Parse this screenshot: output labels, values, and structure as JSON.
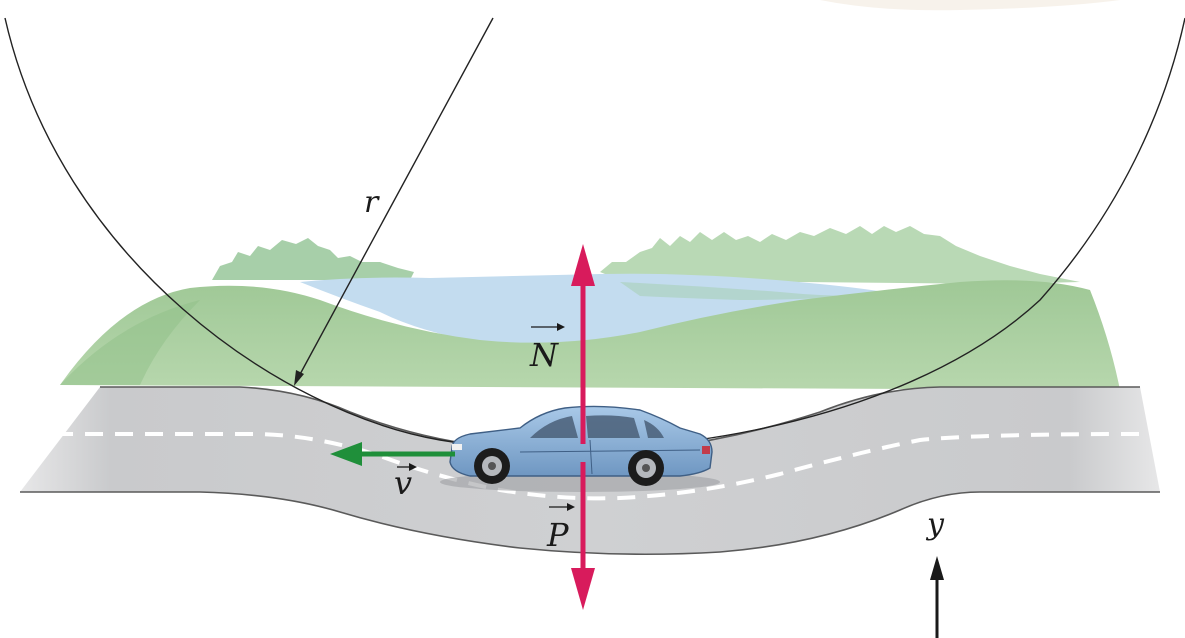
{
  "labels": {
    "radius": "r",
    "normal_force": "N",
    "weight": "P",
    "velocity": "v",
    "y_axis": "y"
  },
  "colors": {
    "force_arrows": "#d81b5c",
    "velocity_arrow": "#1f8f3a",
    "road": "#cfd0d2",
    "road_edge": "#555555",
    "grass": "#a9cf9f",
    "lake": "#c7def0",
    "trees": "#9fcb9a",
    "car_body": "#8fb4d9",
    "circle_line": "#222222"
  },
  "icons": {
    "vector_marker": "over-arrow",
    "vehicle": "sedan-car"
  }
}
